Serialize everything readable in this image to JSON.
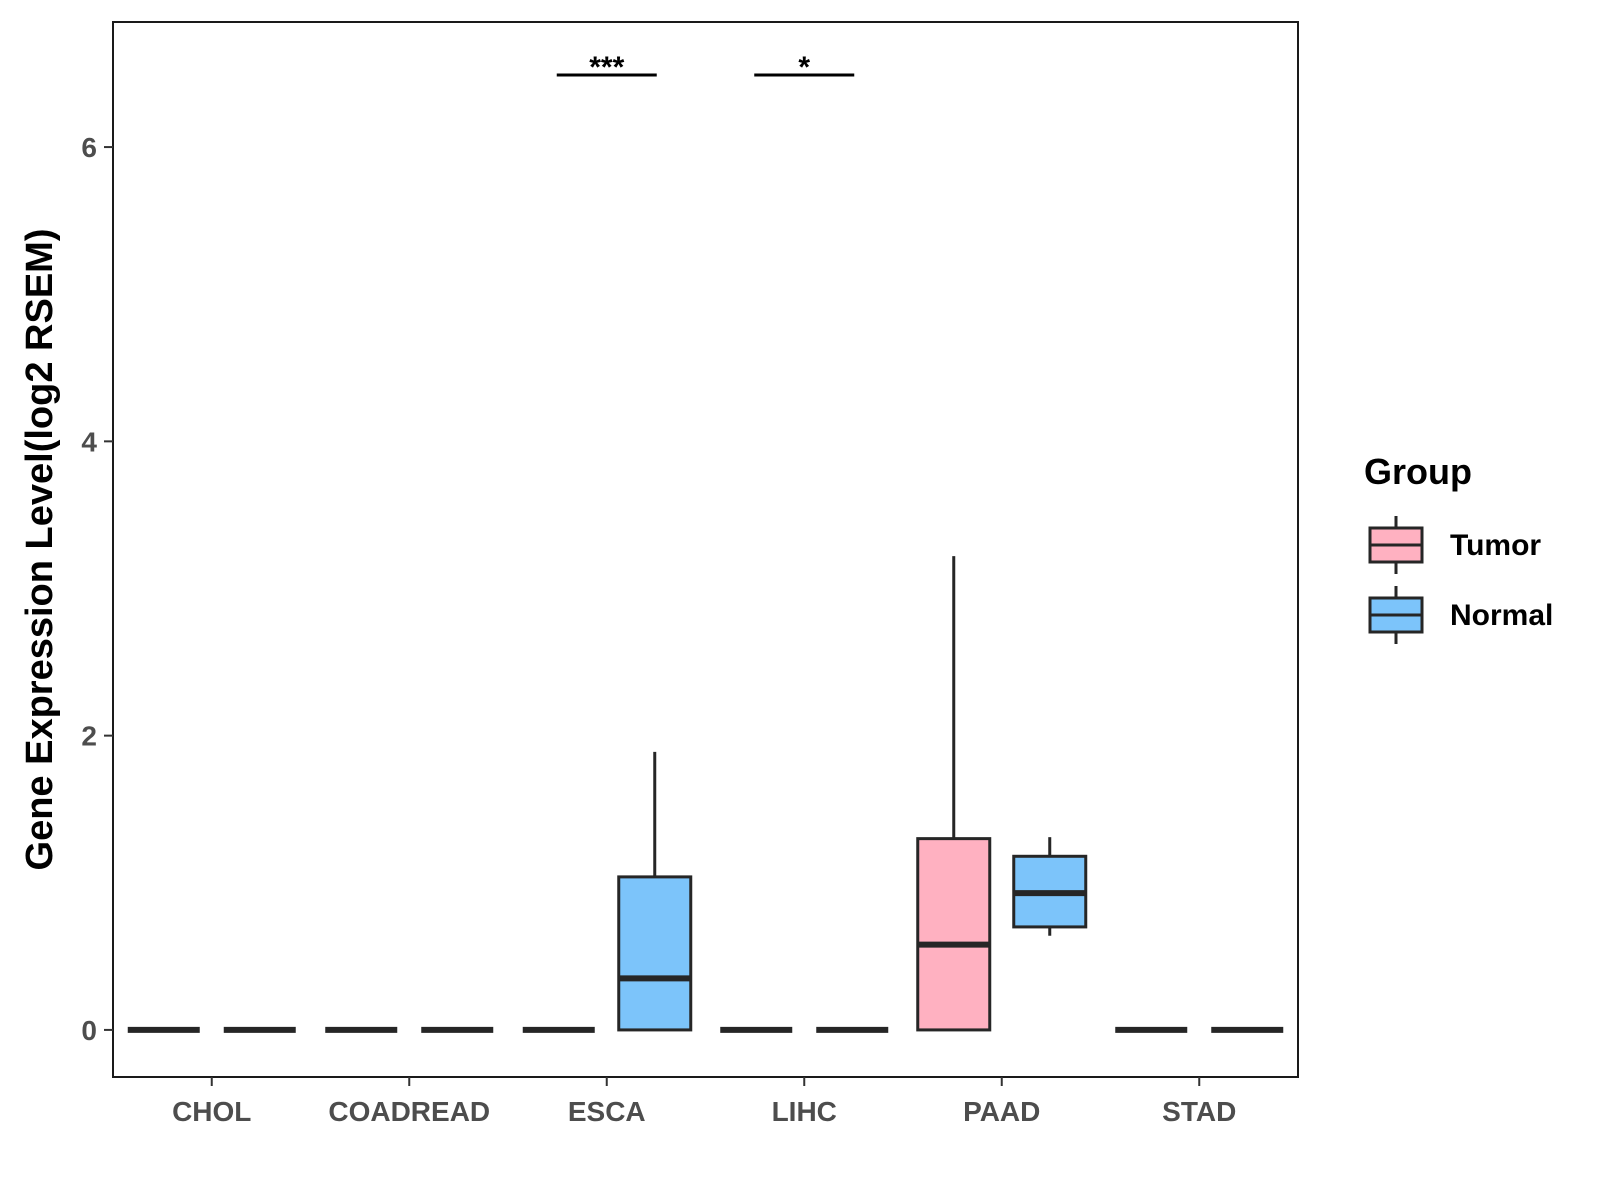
{
  "chart_data": {
    "type": "boxplot",
    "ylabel": "Gene Expression Level(log2 RSEM)",
    "xlabel": "",
    "ylim": [
      -0.32,
      6.85
    ],
    "yticks": [
      0,
      2,
      4,
      6
    ],
    "categories": [
      "CHOL",
      "COADREAD",
      "ESCA",
      "LIHC",
      "PAAD",
      "STAD"
    ],
    "legend": {
      "title": "Group",
      "position": "right",
      "entries": [
        {
          "name": "Tumor",
          "color": "#FFB1C1"
        },
        {
          "name": "Normal",
          "color": "#7CC4FA"
        }
      ]
    },
    "series": [
      {
        "name": "Tumor",
        "color": "#FFB1C1",
        "boxes": [
          {
            "category": "CHOL",
            "min": 0,
            "q1": 0,
            "median": 0,
            "q3": 0,
            "max": 0
          },
          {
            "category": "COADREAD",
            "min": 0,
            "q1": 0,
            "median": 0,
            "q3": 0,
            "max": 0
          },
          {
            "category": "ESCA",
            "min": 0,
            "q1": 0,
            "median": 0,
            "q3": 0,
            "max": 0
          },
          {
            "category": "LIHC",
            "min": 0,
            "q1": 0,
            "median": 0,
            "q3": 0,
            "max": 0
          },
          {
            "category": "PAAD",
            "min": 0,
            "q1": 0,
            "median": 0.58,
            "q3": 1.3,
            "max": 3.22
          },
          {
            "category": "STAD",
            "min": 0,
            "q1": 0,
            "median": 0,
            "q3": 0,
            "max": 0
          }
        ]
      },
      {
        "name": "Normal",
        "color": "#7CC4FA",
        "boxes": [
          {
            "category": "CHOL",
            "min": 0,
            "q1": 0,
            "median": 0,
            "q3": 0,
            "max": 0
          },
          {
            "category": "COADREAD",
            "min": 0,
            "q1": 0,
            "median": 0,
            "q3": 0,
            "max": 0
          },
          {
            "category": "ESCA",
            "min": 0,
            "q1": 0,
            "median": 0.35,
            "q3": 1.04,
            "max": 1.89
          },
          {
            "category": "LIHC",
            "min": 0,
            "q1": 0,
            "median": 0,
            "q3": 0,
            "max": 0
          },
          {
            "category": "PAAD",
            "min": 0.64,
            "q1": 0.7,
            "median": 0.93,
            "q3": 1.18,
            "max": 1.31
          },
          {
            "category": "STAD",
            "min": 0,
            "q1": 0,
            "median": 0,
            "q3": 0,
            "max": 0
          }
        ]
      }
    ],
    "annotations": [
      {
        "category": "ESCA",
        "label": "***",
        "y": 6.49
      },
      {
        "category": "LIHC",
        "label": "*",
        "y": 6.49
      }
    ],
    "grid": false
  }
}
